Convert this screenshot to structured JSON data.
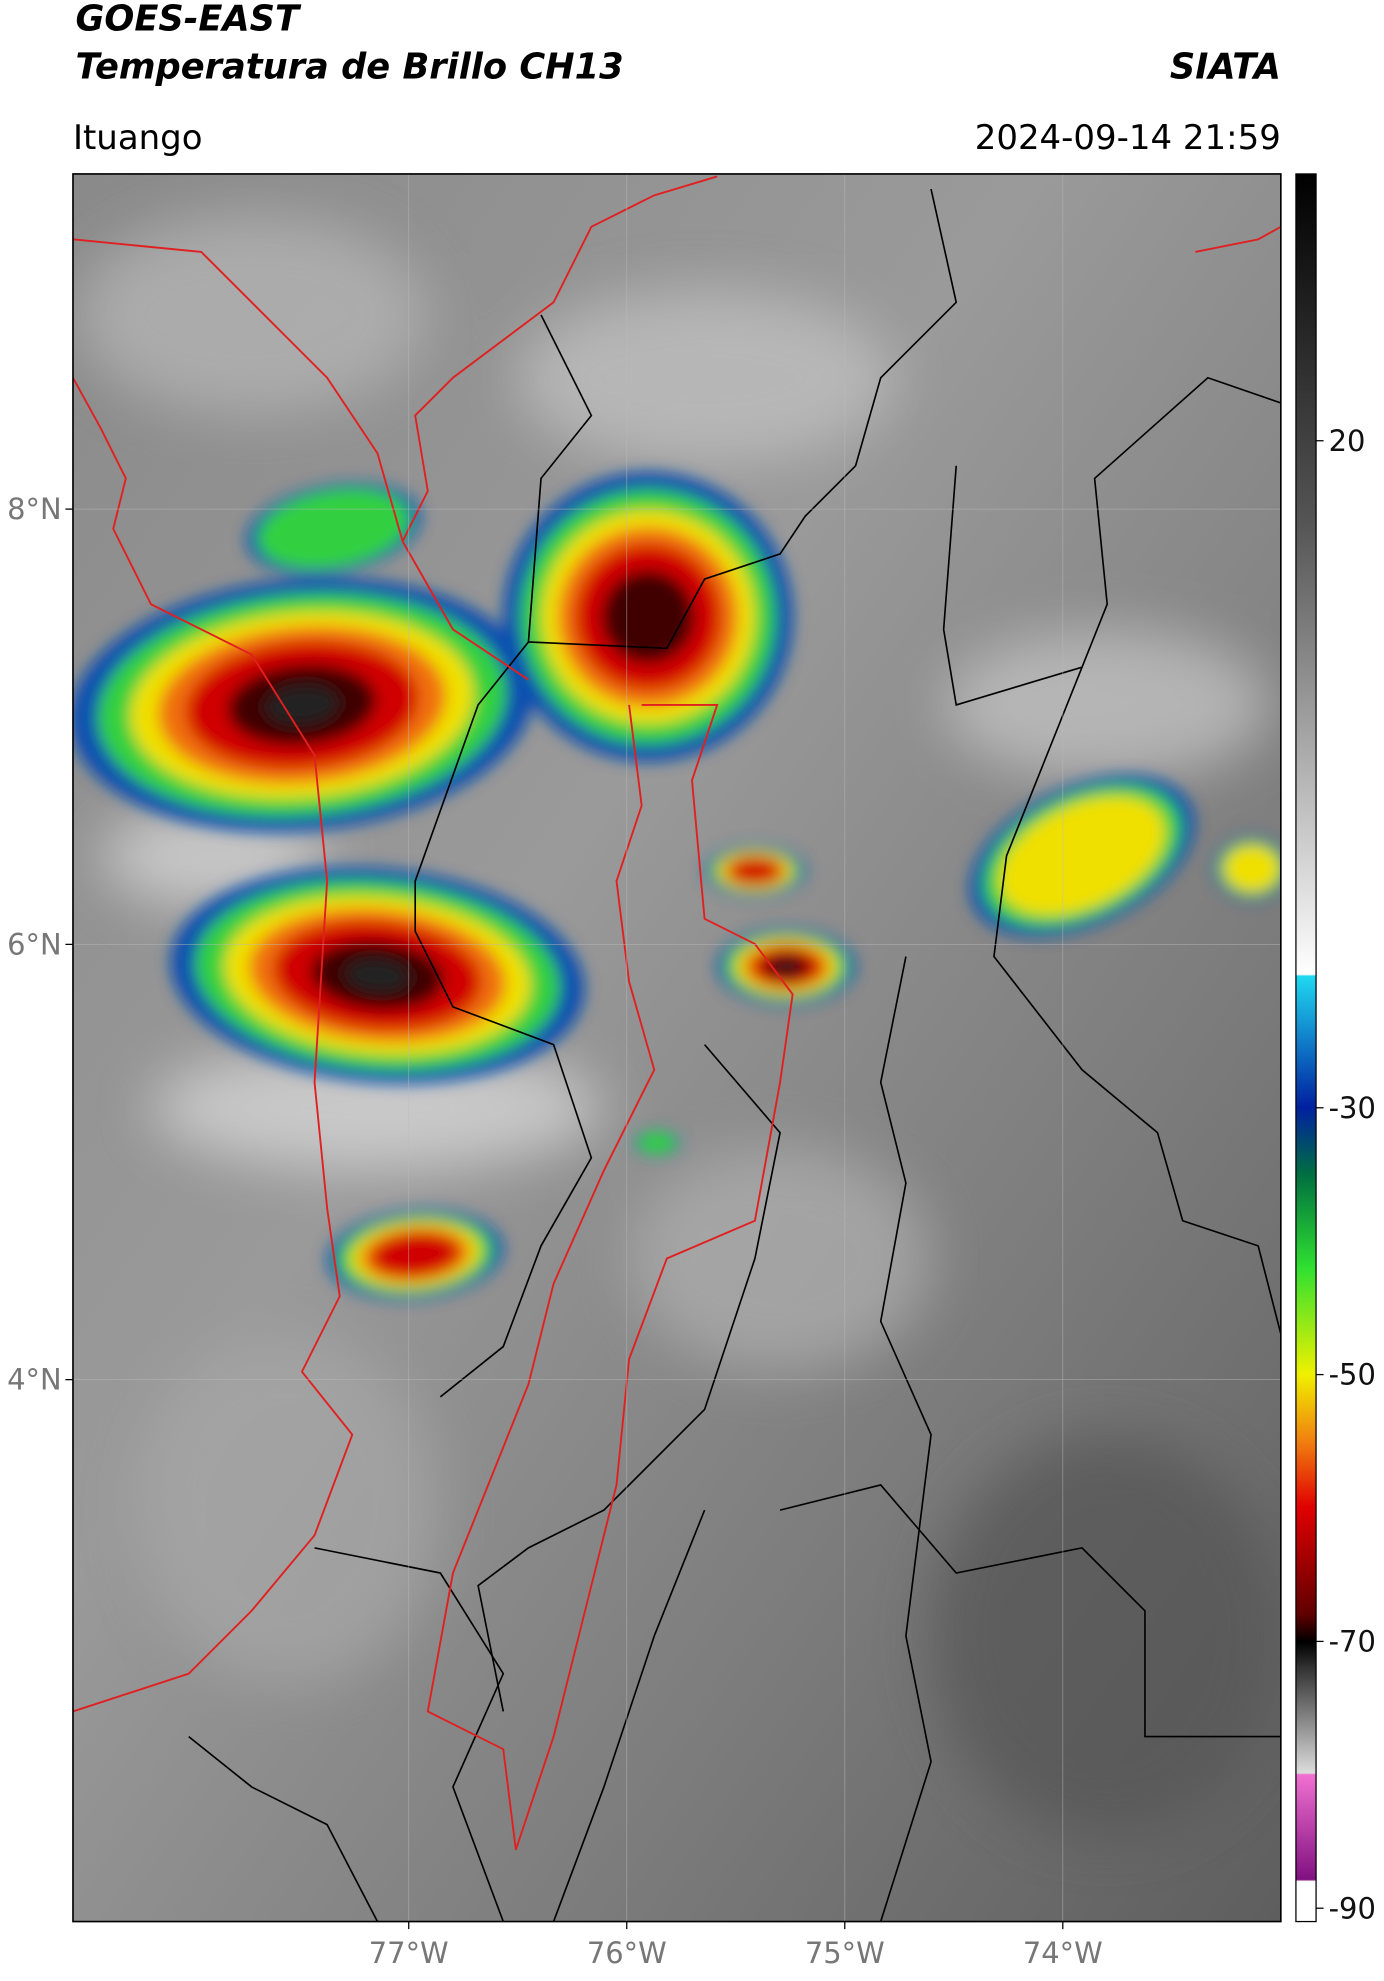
{
  "header": {
    "title": "GOES-EAST",
    "subtitle": "Temperatura de Brillo CH13",
    "region": "Ituango",
    "source": "SIATA",
    "datetime": "2024-09-14 21:59"
  },
  "map": {
    "xlim": [
      -78.54,
      -73.0
    ],
    "ylim": [
      1.51,
      9.54
    ],
    "xticks": [
      {
        "value": -77,
        "label": "77°W"
      },
      {
        "value": -76,
        "label": "76°W"
      },
      {
        "value": -75,
        "label": "75°W"
      },
      {
        "value": -74,
        "label": "74°W"
      }
    ],
    "yticks": [
      {
        "value": 4,
        "label": "4°N"
      },
      {
        "value": 6,
        "label": "6°N"
      },
      {
        "value": 8,
        "label": "8°N"
      }
    ],
    "grid": true
  },
  "colorbar": {
    "lim": [
      -91,
      40
    ],
    "ticks": [
      20,
      -30,
      -50,
      -70,
      -90
    ]
  }
}
